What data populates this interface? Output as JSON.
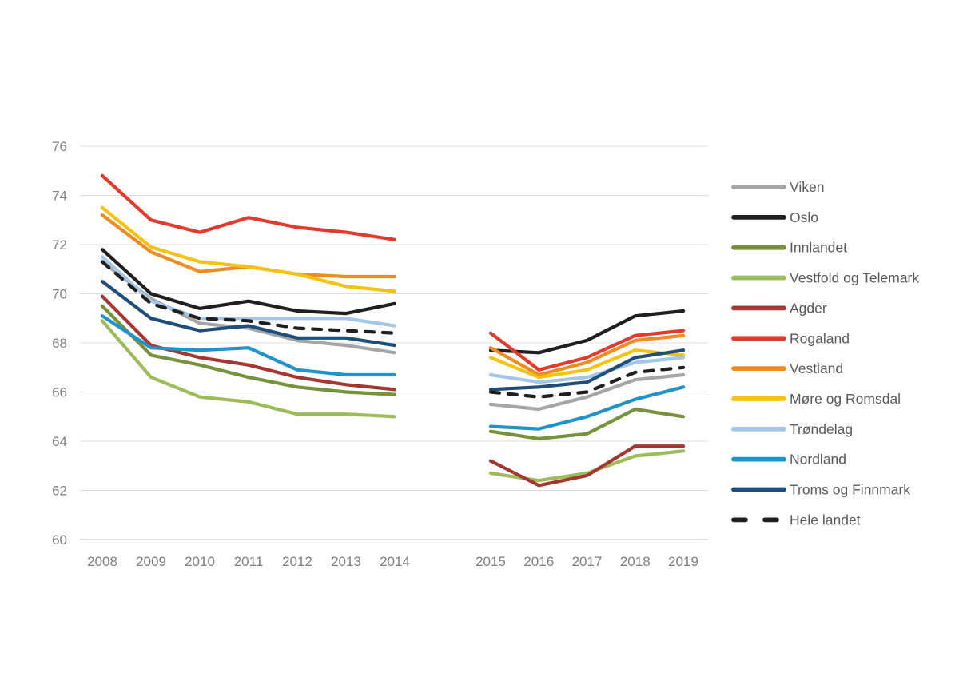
{
  "chart_data": {
    "type": "line",
    "title": "",
    "xlabel": "",
    "ylabel": "",
    "ylim": [
      60,
      76
    ],
    "yticks": [
      76,
      74,
      72,
      70,
      68,
      66,
      64,
      62,
      60
    ],
    "grid": true,
    "legend_position": "right",
    "segments": [
      {
        "x_labels": [
          "2008",
          "2009",
          "2010",
          "2011",
          "2012",
          "2013",
          "2014"
        ]
      },
      {
        "x_labels": [
          "2015",
          "2016",
          "2017",
          "2018",
          "2019"
        ]
      }
    ],
    "series": [
      {
        "name": "Viken",
        "color": "#A6A6A6",
        "dashed": false,
        "segment1": [
          71.3,
          69.8,
          68.8,
          68.6,
          68.1,
          67.9,
          67.6
        ],
        "segment2": [
          65.5,
          65.3,
          65.8,
          66.5,
          66.7
        ]
      },
      {
        "name": "Oslo",
        "color": "#1F1F1F",
        "dashed": false,
        "segment1": [
          71.8,
          70.0,
          69.4,
          69.7,
          69.3,
          69.2,
          69.6
        ],
        "segment2": [
          67.7,
          67.6,
          68.1,
          69.1,
          69.3
        ]
      },
      {
        "name": "Innlandet",
        "color": "#76923C",
        "dashed": false,
        "segment1": [
          69.5,
          67.5,
          67.1,
          66.6,
          66.2,
          66.0,
          65.9
        ],
        "segment2": [
          64.4,
          64.1,
          64.3,
          65.3,
          65.0
        ]
      },
      {
        "name": "Vestfold og Telemark",
        "color": "#9CBB59",
        "dashed": false,
        "segment1": [
          68.9,
          66.6,
          65.8,
          65.6,
          65.1,
          65.1,
          65.0
        ],
        "segment2": [
          62.7,
          62.4,
          62.7,
          63.4,
          63.6
        ]
      },
      {
        "name": "Agder",
        "color": "#A43732",
        "dashed": false,
        "segment1": [
          69.9,
          67.9,
          67.4,
          67.1,
          66.6,
          66.3,
          66.1
        ],
        "segment2": [
          63.2,
          62.2,
          62.6,
          63.8,
          63.8
        ]
      },
      {
        "name": "Rogaland",
        "color": "#E23B2E",
        "dashed": false,
        "segment1": [
          74.8,
          73.0,
          72.5,
          73.1,
          72.7,
          72.5,
          72.2
        ],
        "segment2": [
          68.4,
          66.9,
          67.4,
          68.3,
          68.5
        ]
      },
      {
        "name": "Vestland",
        "color": "#ED8C22",
        "dashed": false,
        "segment1": [
          73.2,
          71.7,
          70.9,
          71.1,
          70.8,
          70.7,
          70.7
        ],
        "segment2": [
          67.8,
          66.7,
          67.2,
          68.1,
          68.3
        ]
      },
      {
        "name": "Møre og Romsdal",
        "color": "#F2C214",
        "dashed": false,
        "segment1": [
          73.5,
          71.9,
          71.3,
          71.1,
          70.8,
          70.3,
          70.1
        ],
        "segment2": [
          67.4,
          66.6,
          66.9,
          67.7,
          67.5
        ]
      },
      {
        "name": "Trøndelag",
        "color": "#A3C7E8",
        "dashed": false,
        "segment1": [
          71.5,
          69.7,
          69.0,
          69.0,
          69.0,
          69.0,
          68.7
        ],
        "segment2": [
          66.7,
          66.4,
          66.6,
          67.2,
          67.4
        ]
      },
      {
        "name": "Nordland",
        "color": "#2093C8",
        "dashed": false,
        "segment1": [
          69.1,
          67.8,
          67.7,
          67.8,
          66.9,
          66.7,
          66.7
        ],
        "segment2": [
          64.6,
          64.5,
          65.0,
          65.7,
          66.2
        ]
      },
      {
        "name": "Troms og Finnmark",
        "color": "#1F4E79",
        "dashed": false,
        "segment1": [
          70.5,
          69.0,
          68.5,
          68.7,
          68.2,
          68.2,
          67.9
        ],
        "segment2": [
          66.1,
          66.2,
          66.4,
          67.4,
          67.7
        ]
      },
      {
        "name": "Hele landet",
        "color": "#1F1F1F",
        "dashed": true,
        "segment1": [
          71.3,
          69.6,
          69.0,
          68.9,
          68.6,
          68.5,
          68.4
        ],
        "segment2": [
          66.0,
          65.8,
          66.0,
          66.8,
          67.0
        ]
      }
    ]
  }
}
